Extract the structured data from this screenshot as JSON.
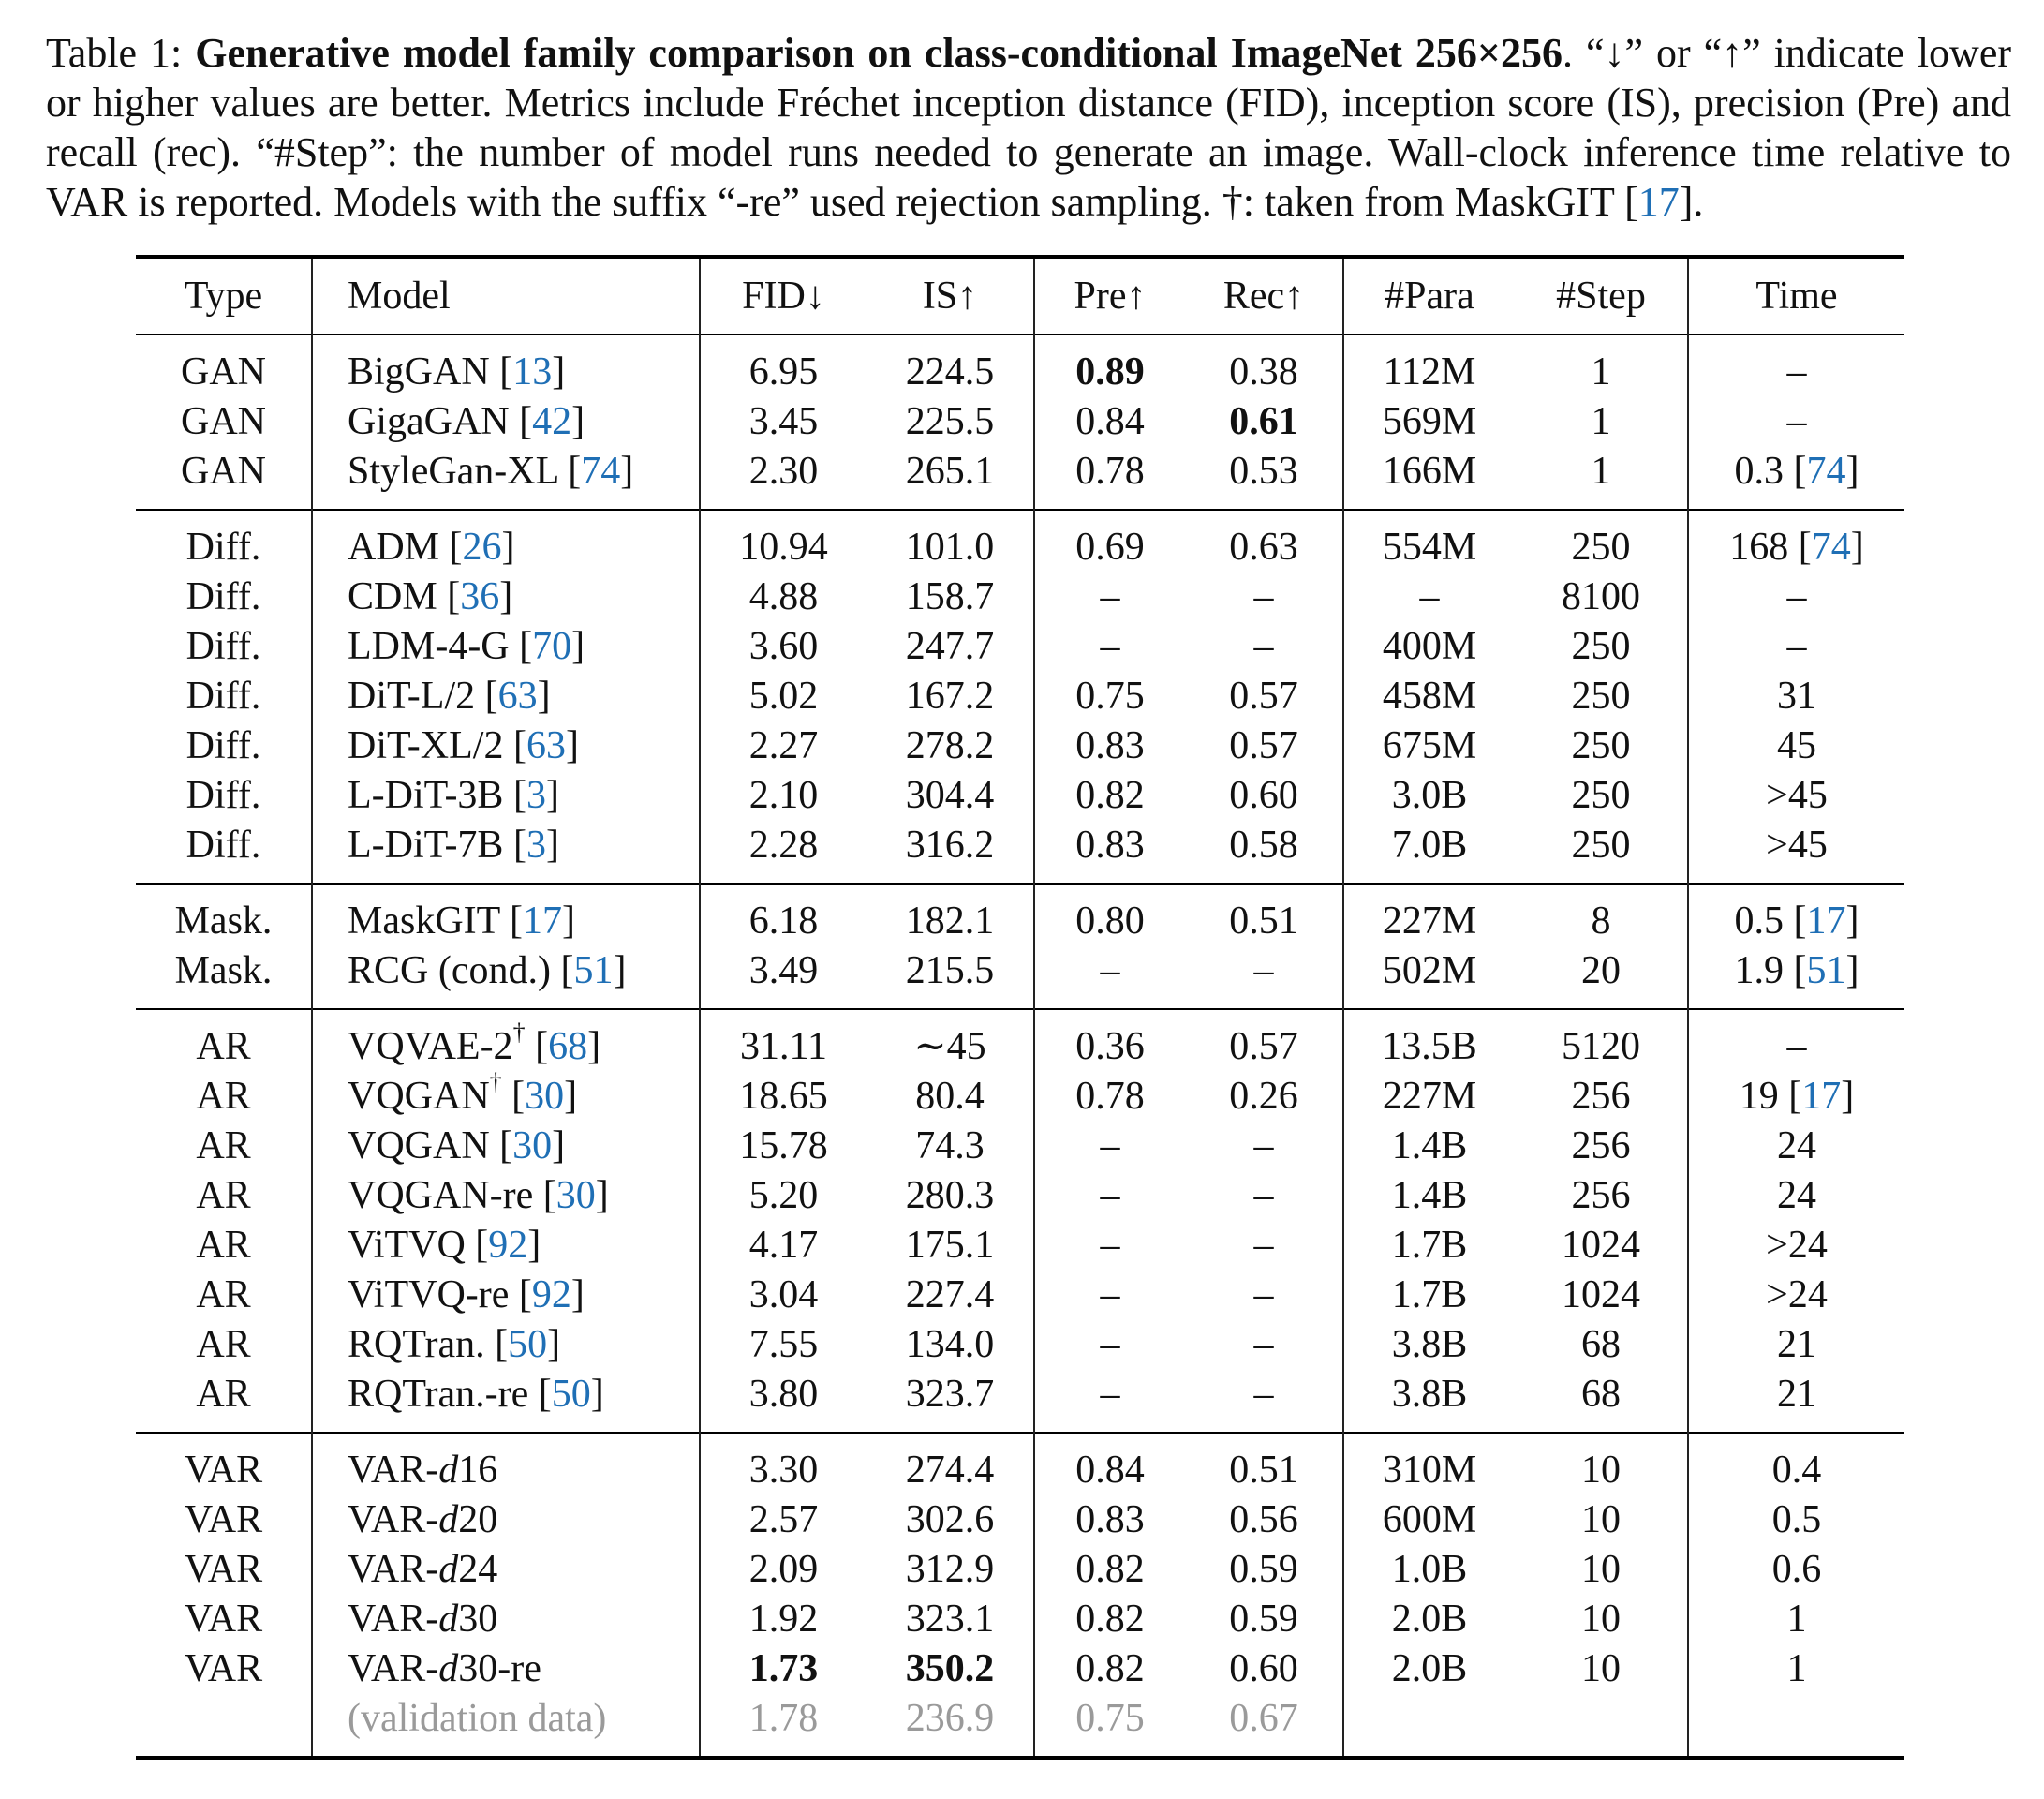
{
  "caption": {
    "label": "Table 1: ",
    "title": "Generative model family comparison on class-conditional ImageNet 256×256",
    "text": ". “↓” or “↑” indicate lower or higher values are better. Metrics include Fréchet inception distance (FID), inception score (IS), precision (Pre) and recall (rec). “#Step”: the number of model runs needed to generate an image. Wall-clock inference time relative to VAR is reported. Models with the suffix “-re” used rejection sampling. †: taken from MaskGIT [",
    "cite": "17",
    "end": "]."
  },
  "headers": [
    "Type",
    "Model",
    "FID↓",
    "IS↑",
    "Pre↑",
    "Rec↑",
    "#Para",
    "#Step",
    "Time"
  ],
  "groups": [
    {
      "rows": [
        {
          "type": "GAN",
          "model": {
            "pre": "BigGAN ",
            "cite": "13"
          },
          "fid": "6.95",
          "is": "224.5",
          "pre": {
            "v": "0.89",
            "bold": true
          },
          "rec": "0.38",
          "para": "112M",
          "step": "1",
          "time": "–"
        },
        {
          "type": "GAN",
          "model": {
            "pre": "GigaGAN ",
            "cite": "42"
          },
          "fid": "3.45",
          "is": "225.5",
          "pre": "0.84",
          "rec": {
            "v": "0.61",
            "bold": true
          },
          "para": "569M",
          "step": "1",
          "time": "–"
        },
        {
          "type": "GAN",
          "model": {
            "pre": "StyleGan-XL ",
            "cite": "74"
          },
          "fid": "2.30",
          "is": "265.1",
          "pre": "0.78",
          "rec": "0.53",
          "para": "166M",
          "step": "1",
          "time": {
            "v": "0.3 ",
            "cite": "74"
          }
        }
      ]
    },
    {
      "rows": [
        {
          "type": "Diff.",
          "model": {
            "pre": "ADM ",
            "cite": "26"
          },
          "fid": "10.94",
          "is": "101.0",
          "pre": "0.69",
          "rec": "0.63",
          "para": "554M",
          "step": "250",
          "time": {
            "v": "168 ",
            "cite": "74"
          }
        },
        {
          "type": "Diff.",
          "model": {
            "pre": "CDM ",
            "cite": "36"
          },
          "fid": "4.88",
          "is": "158.7",
          "pre": "–",
          "rec": "–",
          "para": "–",
          "step": "8100",
          "time": "–"
        },
        {
          "type": "Diff.",
          "model": {
            "pre": "LDM-4-G ",
            "cite": "70"
          },
          "fid": "3.60",
          "is": "247.7",
          "pre": "–",
          "rec": "–",
          "para": "400M",
          "step": "250",
          "time": "–"
        },
        {
          "type": "Diff.",
          "model": {
            "pre": "DiT-L/2 ",
            "cite": "63"
          },
          "fid": "5.02",
          "is": "167.2",
          "pre": "0.75",
          "rec": "0.57",
          "para": "458M",
          "step": "250",
          "time": "31"
        },
        {
          "type": "Diff.",
          "model": {
            "pre": "DiT-XL/2 ",
            "cite": "63"
          },
          "fid": "2.27",
          "is": "278.2",
          "pre": "0.83",
          "rec": "0.57",
          "para": "675M",
          "step": "250",
          "time": "45"
        },
        {
          "type": "Diff.",
          "model": {
            "pre": "L-DiT-3B ",
            "cite": "3"
          },
          "fid": "2.10",
          "is": "304.4",
          "pre": "0.82",
          "rec": "0.60",
          "para": "3.0B",
          "step": "250",
          "time": ">45"
        },
        {
          "type": "Diff.",
          "model": {
            "pre": "L-DiT-7B ",
            "cite": "3"
          },
          "fid": "2.28",
          "is": "316.2",
          "pre": "0.83",
          "rec": "0.58",
          "para": "7.0B",
          "step": "250",
          "time": ">45"
        }
      ]
    },
    {
      "rows": [
        {
          "type": "Mask.",
          "model": {
            "pre": "MaskGIT ",
            "cite": "17"
          },
          "fid": "6.18",
          "is": "182.1",
          "pre": "0.80",
          "rec": "0.51",
          "para": "227M",
          "step": "8",
          "time": {
            "v": "0.5 ",
            "cite": "17"
          }
        },
        {
          "type": "Mask.",
          "model": {
            "pre": "RCG (cond.) ",
            "cite": "51"
          },
          "fid": "3.49",
          "is": "215.5",
          "pre": "–",
          "rec": "–",
          "para": "502M",
          "step": "20",
          "time": {
            "v": "1.9 ",
            "cite": "51"
          }
        }
      ]
    },
    {
      "rows": [
        {
          "type": "AR",
          "model": {
            "pre": "VQVAE-2",
            "sup": "†",
            "post": " ",
            "cite": "68"
          },
          "fid": "31.11",
          "is": "∼45",
          "pre": "0.36",
          "rec": "0.57",
          "para": "13.5B",
          "step": "5120",
          "time": "–"
        },
        {
          "type": "AR",
          "model": {
            "pre": "VQGAN",
            "sup": "†",
            "post": " ",
            "cite": "30"
          },
          "fid": "18.65",
          "is": "80.4",
          "pre": "0.78",
          "rec": "0.26",
          "para": "227M",
          "step": "256",
          "time": {
            "v": "19 ",
            "cite": "17"
          }
        },
        {
          "type": "AR",
          "model": {
            "pre": "VQGAN ",
            "cite": "30"
          },
          "fid": "15.78",
          "is": "74.3",
          "pre": "–",
          "rec": "–",
          "para": "1.4B",
          "step": "256",
          "time": "24"
        },
        {
          "type": "AR",
          "model": {
            "pre": "VQGAN-re ",
            "cite": "30"
          },
          "fid": "5.20",
          "is": "280.3",
          "pre": "–",
          "rec": "–",
          "para": "1.4B",
          "step": "256",
          "time": "24"
        },
        {
          "type": "AR",
          "model": {
            "pre": "ViTVQ ",
            "cite": "92"
          },
          "fid": "4.17",
          "is": "175.1",
          "pre": "–",
          "rec": "–",
          "para": "1.7B",
          "step": "1024",
          "time": ">24"
        },
        {
          "type": "AR",
          "model": {
            "pre": "ViTVQ-re ",
            "cite": "92"
          },
          "fid": "3.04",
          "is": "227.4",
          "pre": "–",
          "rec": "–",
          "para": "1.7B",
          "step": "1024",
          "time": ">24"
        },
        {
          "type": "AR",
          "model": {
            "pre": "RQTran. ",
            "cite": "50"
          },
          "fid": "7.55",
          "is": "134.0",
          "pre": "–",
          "rec": "–",
          "para": "3.8B",
          "step": "68",
          "time": "21"
        },
        {
          "type": "AR",
          "model": {
            "pre": "RQTran.-re ",
            "cite": "50"
          },
          "fid": "3.80",
          "is": "323.7",
          "pre": "–",
          "rec": "–",
          "para": "3.8B",
          "step": "68",
          "time": "21"
        }
      ]
    },
    {
      "rows": [
        {
          "type": "VAR",
          "model": {
            "pre": "VAR-",
            "ital": "d",
            "post": "16"
          },
          "fid": "3.30",
          "is": "274.4",
          "pre": "0.84",
          "rec": "0.51",
          "para": "310M",
          "step": "10",
          "time": "0.4"
        },
        {
          "type": "VAR",
          "model": {
            "pre": "VAR-",
            "ital": "d",
            "post": "20"
          },
          "fid": "2.57",
          "is": "302.6",
          "pre": "0.83",
          "rec": "0.56",
          "para": "600M",
          "step": "10",
          "time": "0.5"
        },
        {
          "type": "VAR",
          "model": {
            "pre": "VAR-",
            "ital": "d",
            "post": "24"
          },
          "fid": "2.09",
          "is": "312.9",
          "pre": "0.82",
          "rec": "0.59",
          "para": "1.0B",
          "step": "10",
          "time": "0.6"
        },
        {
          "type": "VAR",
          "model": {
            "pre": "VAR-",
            "ital": "d",
            "post": "30"
          },
          "fid": "1.92",
          "is": "323.1",
          "pre": "0.82",
          "rec": "0.59",
          "para": "2.0B",
          "step": "10",
          "time": "1"
        },
        {
          "type": "VAR",
          "model": {
            "pre": "VAR-",
            "ital": "d",
            "post": "30-re"
          },
          "fid": {
            "v": "1.73",
            "bold": true
          },
          "is": {
            "v": "350.2",
            "bold": true
          },
          "pre": "0.82",
          "rec": "0.60",
          "para": "2.0B",
          "step": "10",
          "time": "1"
        },
        {
          "type": "",
          "grey": true,
          "model": {
            "pre": "(validation data)"
          },
          "fid": "1.78",
          "is": "236.9",
          "pre": "0.75",
          "rec": "0.67",
          "para": "",
          "step": "",
          "time": ""
        }
      ]
    }
  ]
}
